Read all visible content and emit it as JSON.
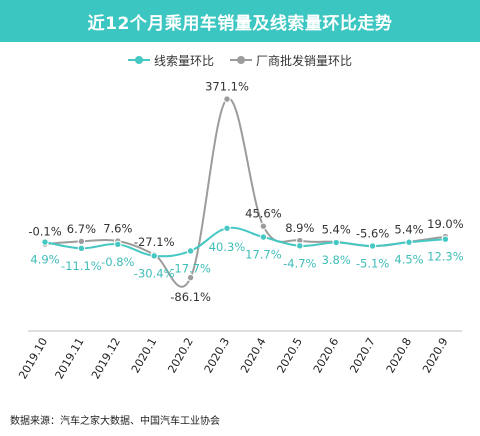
{
  "header": {
    "title": "近12个月乘用车销量及线索量环比走势"
  },
  "source": "数据来源：汽车之家大数据、中国汽车工业协会",
  "colors": {
    "banner": "#3cc6c1",
    "series_1": "#45c8c3",
    "series_2": "#9c9c9c",
    "axis": "#bfbfbf"
  },
  "chart_data": {
    "type": "line",
    "title": "近12个月乘用车销量及线索量环比走势",
    "xlabel": "",
    "ylabel": "",
    "ylim": [
      -100,
      380
    ],
    "grid": false,
    "legend_position": "top-center",
    "categories": [
      "2019.10",
      "2019.11",
      "2019.12",
      "2020.1",
      "2020.2",
      "2020.3",
      "2020.4",
      "2020.5",
      "2020.6",
      "2020.7",
      "2020.8",
      "2020.9"
    ],
    "series": [
      {
        "name": "线索量环比",
        "color": "#45c8c3",
        "values": [
          4.9,
          -11.1,
          -0.8,
          -30.4,
          -17.7,
          40.3,
          17.7,
          -4.7,
          3.8,
          -5.1,
          4.5,
          12.3
        ],
        "labels": [
          "4.9%",
          "-11.1%",
          "-0.8%",
          "-30.4%",
          "-17.7%",
          "40.3%",
          "17.7%",
          "-4.7%",
          "3.8%",
          "-5.1%",
          "4.5%",
          "12.3%"
        ]
      },
      {
        "name": "厂商批发销量环比",
        "color": "#9c9c9c",
        "values": [
          -0.1,
          6.7,
          7.6,
          -27.1,
          -86.1,
          371.1,
          45.6,
          8.9,
          5.4,
          -5.6,
          5.4,
          19.0
        ],
        "labels": [
          "-0.1%",
          "6.7%",
          "7.6%",
          "-27.1%",
          "-86.1%",
          "371.1%",
          "45.6%",
          "8.9%",
          "5.4%",
          "-5.6%",
          "5.4%",
          "19.0%"
        ]
      }
    ]
  }
}
